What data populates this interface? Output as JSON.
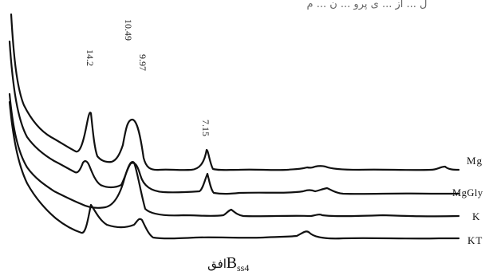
{
  "header_fragment": "ل ... از ... ی پرو ... ن ... م",
  "chart_data": {
    "type": "line",
    "title": "",
    "xlabel": "",
    "ylabel": "",
    "peak_labels": [
      "14.2",
      "10.49",
      "9.97",
      "7.15"
    ],
    "series": [
      {
        "name": "Mg"
      },
      {
        "name": "MgGly"
      },
      {
        "name": "K"
      },
      {
        "name": "KT"
      }
    ],
    "caption": {
      "main": "B",
      "sub": "ss4",
      "word": "افق"
    }
  }
}
